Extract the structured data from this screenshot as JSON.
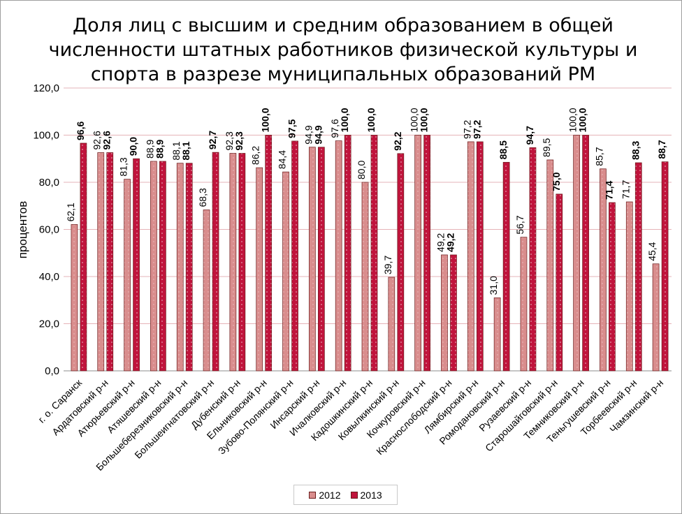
{
  "chart_data": {
    "type": "bar",
    "title": "Доля лиц с высшим и средним образованием в общей численности штатных работников физической культуры и спорта в разрезе муниципальных образований РМ",
    "ylabel": "процентов",
    "xlabel": "",
    "ylim": [
      0,
      120
    ],
    "yticks": [
      "0,0",
      "20,0",
      "40,0",
      "60,0",
      "80,0",
      "100,0",
      "120,0"
    ],
    "grid": true,
    "legend_position": "bottom",
    "categories": [
      "г. о. Саранск",
      "Ардатовский р-н",
      "Атюрьевский р-н",
      "Атяшевский р-н",
      "Большеберезниковский р-н",
      "Большеигнатовский р-н",
      "Дубенский р-н",
      "Ельниковский р-н",
      "Зубово-Полянский р-н",
      "Инсарский р-н",
      "Ичалковский р-н",
      "Кадошкинский р-н",
      "Ковылкинский р-н",
      "Кочкуровский р-н",
      "Краснослободский р-н",
      "Лямбирский р-н",
      "Ромодановский р-н",
      "Рузаевский р-н",
      "Старошайговский р-н",
      "Темниковский р-н",
      "Теньгушевский р-н",
      "Торбеевский р-н",
      "Чамзинский р-н"
    ],
    "series": [
      {
        "name": "2012",
        "color": "#d98d8d",
        "values": [
          62.1,
          92.6,
          81.3,
          88.9,
          88.1,
          68.3,
          92.3,
          86.2,
          84.4,
          94.9,
          97.6,
          80.0,
          39.7,
          100.0,
          49.2,
          97.2,
          31.0,
          56.7,
          89.5,
          100.0,
          85.7,
          71.7,
          45.4
        ],
        "labels": [
          "62,1",
          "92,6",
          "81,3",
          "88,9",
          "88,1",
          "68,3",
          "92,3",
          "86,2",
          "84,4",
          "94,9",
          "97,6",
          "80,0",
          "39,7",
          "100,0",
          "49,2",
          "97,2",
          "31,0",
          "56,7",
          "89,5",
          "100,0",
          "85,7",
          "71,7",
          "45,4"
        ]
      },
      {
        "name": "2013",
        "color": "#c0143c",
        "values": [
          96.6,
          92.6,
          90.0,
          88.9,
          88.1,
          92.7,
          92.3,
          100.0,
          97.5,
          94.9,
          100.0,
          100.0,
          92.2,
          100.0,
          49.2,
          97.2,
          88.5,
          94.7,
          75.0,
          100.0,
          71.4,
          88.3,
          88.7
        ],
        "labels": [
          "96,6",
          "92,6",
          "90,0",
          "88,9",
          "88,1",
          "92,7",
          "92,3",
          "100,0",
          "97,5",
          "94,9",
          "100,0",
          "100,0",
          "92,2",
          "100,0",
          "49,2",
          "97,2",
          "88,5",
          "94,7",
          "75,0",
          "100,0",
          "71,4",
          "88,3",
          "88,7"
        ]
      }
    ]
  }
}
